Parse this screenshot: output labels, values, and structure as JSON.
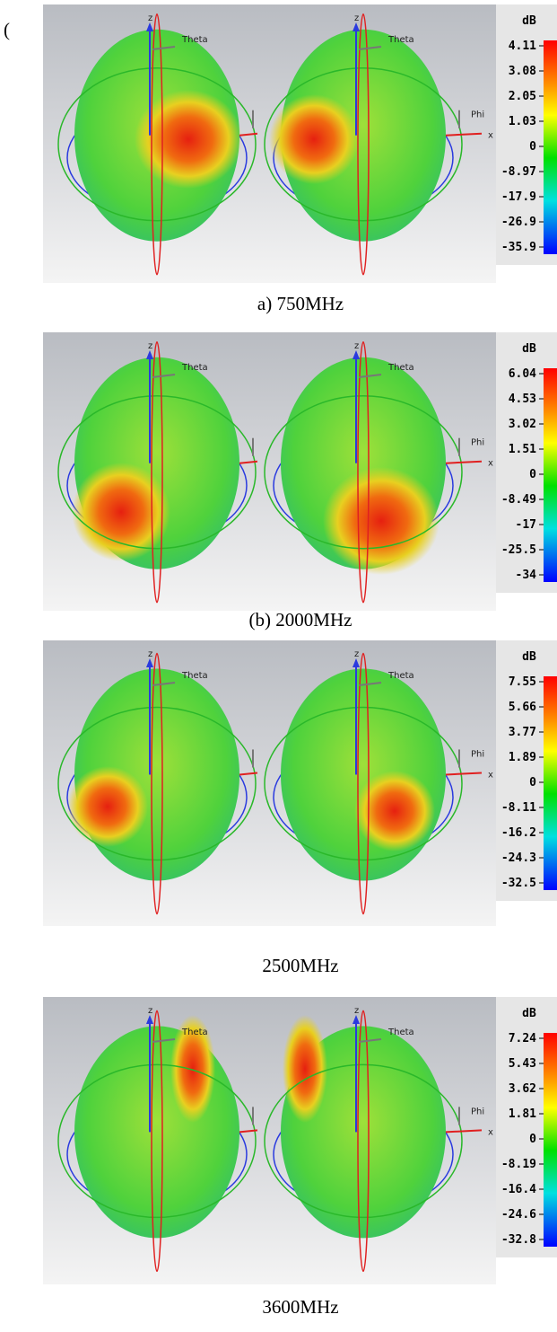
{
  "stray_mark": "(",
  "panels": [
    {
      "caption": "a) 750MHz",
      "colorbar": {
        "unit": "dB",
        "ticks": [
          "4.11",
          "3.08",
          "2.05",
          "1.03",
          "0",
          "-8.97",
          "-17.9",
          "-26.9",
          "-35.9"
        ]
      },
      "axes": {
        "z": "z",
        "theta": "Theta",
        "phi": "Phi",
        "x": "x"
      }
    },
    {
      "caption": "(b) 2000MHz",
      "colorbar": {
        "unit": "dB",
        "ticks": [
          "6.04",
          "4.53",
          "3.02",
          "1.51",
          "0",
          "-8.49",
          "-17",
          "-25.5",
          "-34"
        ]
      },
      "axes": {
        "z": "z",
        "theta": "Theta",
        "phi": "Phi",
        "x": "x"
      }
    },
    {
      "caption": "2500MHz",
      "colorbar": {
        "unit": "dB",
        "ticks": [
          "7.55",
          "5.66",
          "3.77",
          "1.89",
          "0",
          "-8.11",
          "-16.2",
          "-24.3",
          "-32.5"
        ]
      },
      "axes": {
        "z": "z",
        "theta": "Theta",
        "phi": "Phi",
        "x": "x"
      }
    },
    {
      "caption": "3600MHz",
      "colorbar": {
        "unit": "dB",
        "ticks": [
          "7.24",
          "5.43",
          "3.62",
          "1.81",
          "0",
          "-8.19",
          "-16.4",
          "-24.6",
          "-32.8"
        ]
      },
      "axes": {
        "z": "z",
        "theta": "Theta",
        "phi": "Phi",
        "x": "x"
      }
    }
  ]
}
